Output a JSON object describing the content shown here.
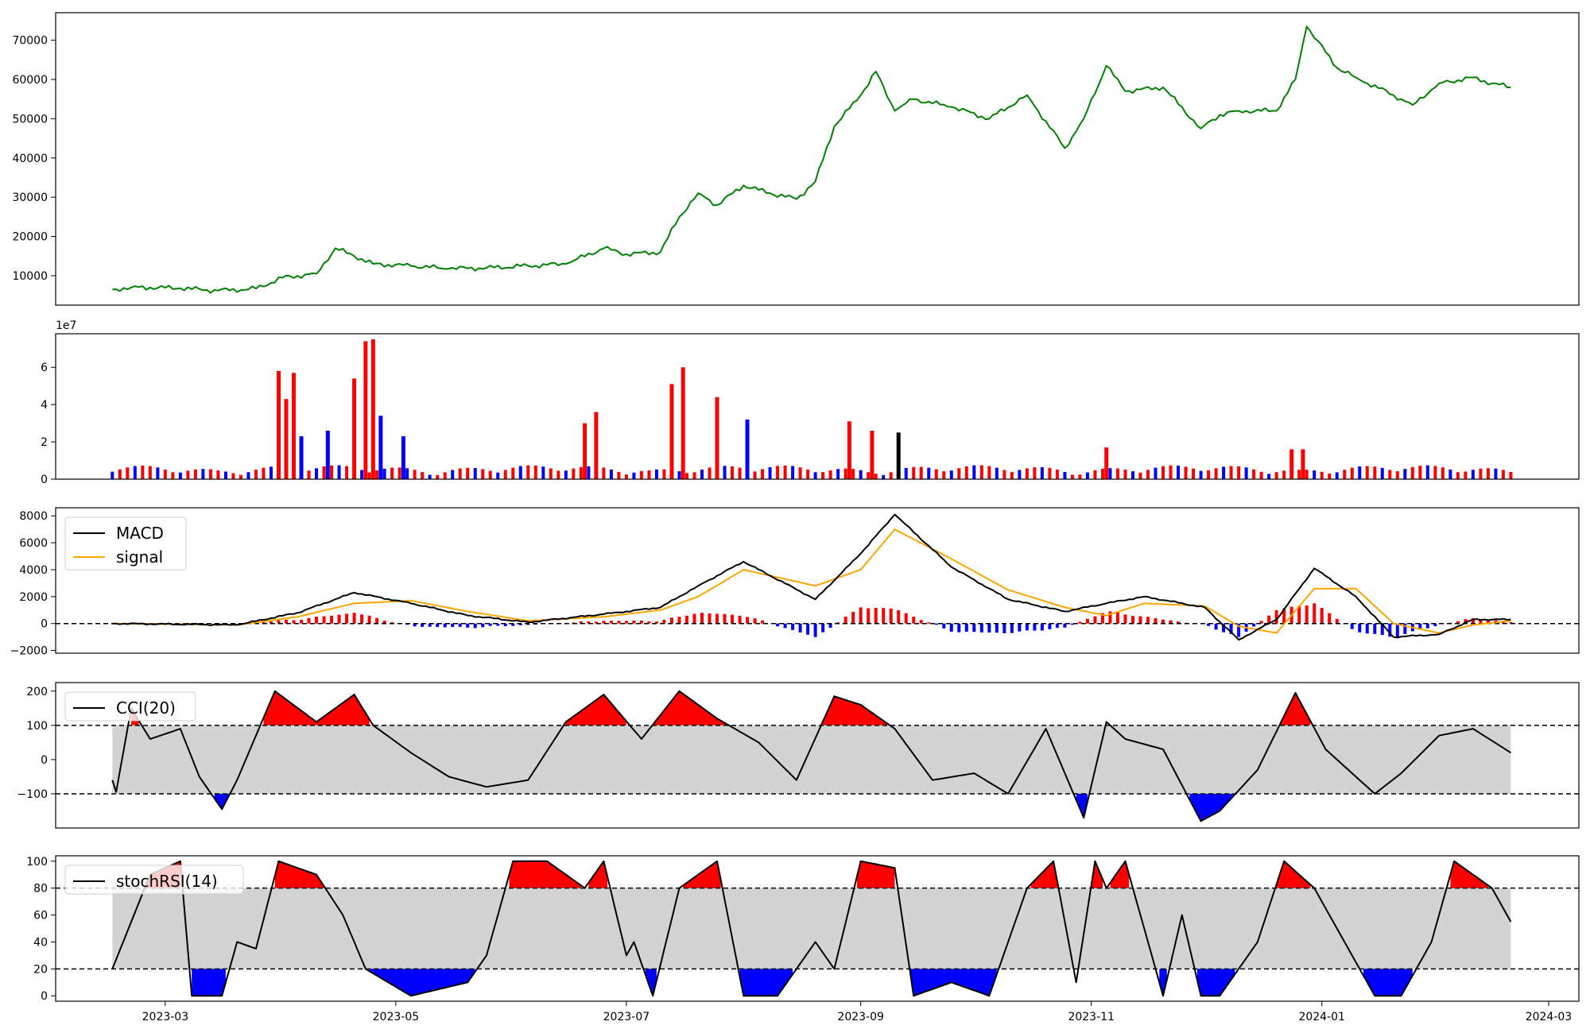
{
  "chart_data": [
    {
      "type": "line",
      "panel": "price",
      "color": "#008000",
      "x_dates": [
        "2023-02-15",
        "2023-02-20",
        "2023-02-25",
        "2023-03-05",
        "2023-03-15",
        "2023-03-25",
        "2023-04-01",
        "2023-04-10",
        "2023-04-15",
        "2023-04-20",
        "2023-04-25",
        "2023-05-05",
        "2023-05-15",
        "2023-05-25",
        "2023-06-05",
        "2023-06-15",
        "2023-06-25",
        "2023-07-01",
        "2023-07-10",
        "2023-07-15",
        "2023-07-20",
        "2023-07-25",
        "2023-08-01",
        "2023-08-08",
        "2023-08-15",
        "2023-08-20",
        "2023-08-25",
        "2023-09-01",
        "2023-09-05",
        "2023-09-10",
        "2023-09-15",
        "2023-09-25",
        "2023-10-05",
        "2023-10-15",
        "2023-10-25",
        "2023-10-30",
        "2023-11-05",
        "2023-11-10",
        "2023-11-20",
        "2023-11-30",
        "2023-12-05",
        "2023-12-10",
        "2023-12-20",
        "2023-12-25",
        "2023-12-28",
        "2024-01-05",
        "2024-01-10",
        "2024-01-20",
        "2024-01-25",
        "2024-02-01",
        "2024-02-10",
        "2024-02-15",
        "2024-02-20"
      ],
      "values": [
        6500,
        7000,
        7000,
        6800,
        6200,
        6700,
        9500,
        10500,
        17000,
        15000,
        13000,
        12500,
        11800,
        12000,
        12500,
        13000,
        17000,
        15500,
        16000,
        25000,
        31000,
        28000,
        33000,
        31000,
        29500,
        34000,
        48000,
        56000,
        62000,
        52000,
        55000,
        53000,
        50000,
        56000,
        42500,
        50000,
        63500,
        57000,
        58000,
        47500,
        51000,
        52000,
        52000,
        60000,
        73500,
        63000,
        60500,
        56000,
        53500,
        59000,
        60500,
        59000,
        58000
      ],
      "ylim": [
        2500,
        77000
      ],
      "yticks": [
        10000,
        20000,
        30000,
        40000,
        50000,
        60000,
        70000
      ],
      "ytick_labels": [
        "10000",
        "20000",
        "30000",
        "40000",
        "50000",
        "60000",
        "70000"
      ]
    },
    {
      "type": "bar",
      "panel": "volume",
      "scale_label": "1e7",
      "ylim": [
        0,
        7.8
      ],
      "yticks": [
        0,
        2,
        4,
        6
      ],
      "ytick_labels": [
        "0",
        "2",
        "4",
        "6"
      ],
      "colors": {
        "up": "#ff0000",
        "down": "#0000ff",
        "flat": "#000000"
      },
      "bars": [
        {
          "x": "2023-03-31",
          "v": 5.8,
          "c": "up"
        },
        {
          "x": "2023-04-02",
          "v": 4.3,
          "c": "up"
        },
        {
          "x": "2023-04-04",
          "v": 5.7,
          "c": "up"
        },
        {
          "x": "2023-04-06",
          "v": 2.3,
          "c": "down"
        },
        {
          "x": "2023-04-13",
          "v": 2.6,
          "c": "down"
        },
        {
          "x": "2023-04-20",
          "v": 5.4,
          "c": "up"
        },
        {
          "x": "2023-04-23",
          "v": 7.4,
          "c": "up"
        },
        {
          "x": "2023-04-25",
          "v": 7.5,
          "c": "up"
        },
        {
          "x": "2023-04-27",
          "v": 3.4,
          "c": "down"
        },
        {
          "x": "2023-05-03",
          "v": 2.3,
          "c": "down"
        },
        {
          "x": "2023-06-20",
          "v": 3.0,
          "c": "up"
        },
        {
          "x": "2023-06-23",
          "v": 3.6,
          "c": "up"
        },
        {
          "x": "2023-07-13",
          "v": 5.1,
          "c": "up"
        },
        {
          "x": "2023-07-16",
          "v": 6.0,
          "c": "up"
        },
        {
          "x": "2023-07-25",
          "v": 4.4,
          "c": "up"
        },
        {
          "x": "2023-08-02",
          "v": 3.2,
          "c": "down"
        },
        {
          "x": "2023-08-29",
          "v": 3.1,
          "c": "up"
        },
        {
          "x": "2023-09-04",
          "v": 2.6,
          "c": "up"
        },
        {
          "x": "2023-09-11",
          "v": 2.5,
          "c": "flat"
        },
        {
          "x": "2023-11-05",
          "v": 1.7,
          "c": "up"
        },
        {
          "x": "2023-12-24",
          "v": 1.6,
          "c": "up"
        },
        {
          "x": "2023-12-27",
          "v": 1.6,
          "c": "up"
        }
      ]
    },
    {
      "type": "line",
      "panel": "macd",
      "series": [
        {
          "name": "MACD",
          "color": "#000000",
          "x_dates": [
            "2023-02-15",
            "2023-03-20",
            "2023-04-05",
            "2023-04-20",
            "2023-05-05",
            "2023-05-20",
            "2023-06-05",
            "2023-06-25",
            "2023-07-10",
            "2023-07-20",
            "2023-08-01",
            "2023-08-20",
            "2023-09-01",
            "2023-09-10",
            "2023-09-25",
            "2023-10-10",
            "2023-10-25",
            "2023-11-05",
            "2023-11-15",
            "2023-12-01",
            "2023-12-10",
            "2023-12-20",
            "2023-12-30",
            "2024-01-10",
            "2024-01-20",
            "2024-02-01",
            "2024-02-10",
            "2024-02-20"
          ],
          "values": [
            0,
            -100,
            800,
            2300,
            1500,
            600,
            100,
            700,
            1200,
            2800,
            4600,
            1800,
            5200,
            8100,
            4200,
            1800,
            900,
            1500,
            2000,
            1200,
            -1200,
            300,
            4100,
            2000,
            -1000,
            -800,
            300,
            300
          ]
        },
        {
          "name": "signal",
          "color": "#ffa500",
          "x_dates": [
            "2023-02-15",
            "2023-03-20",
            "2023-04-05",
            "2023-04-20",
            "2023-05-05",
            "2023-05-20",
            "2023-06-05",
            "2023-06-25",
            "2023-07-10",
            "2023-07-20",
            "2023-08-01",
            "2023-08-20",
            "2023-09-01",
            "2023-09-10",
            "2023-09-25",
            "2023-10-10",
            "2023-10-25",
            "2023-11-05",
            "2023-11-15",
            "2023-12-01",
            "2023-12-10",
            "2023-12-20",
            "2023-12-30",
            "2024-01-10",
            "2024-01-20",
            "2024-02-01",
            "2024-02-10",
            "2024-02-20"
          ],
          "values": [
            0,
            -100,
            500,
            1500,
            1700,
            900,
            200,
            500,
            1000,
            2000,
            4000,
            2800,
            4000,
            7000,
            4800,
            2500,
            1200,
            600,
            1500,
            1300,
            -200,
            -700,
            2600,
            2600,
            0,
            -700,
            -100,
            200
          ]
        }
      ],
      "hist_color_pos": "#ff0000",
      "hist_color_neg": "#0000ff",
      "hline": 0,
      "ylim": [
        -2200,
        8600
      ],
      "yticks": [
        -2000,
        0,
        2000,
        4000,
        6000,
        8000
      ],
      "ytick_labels": [
        "−2000",
        "0",
        "2000",
        "4000",
        "6000",
        "8000"
      ]
    },
    {
      "type": "line",
      "panel": "cci",
      "series": [
        {
          "name": "CCI(20)",
          "color": "#000000",
          "x_dates": [
            "2023-02-15",
            "2023-02-16",
            "2023-02-20",
            "2023-02-25",
            "2023-03-05",
            "2023-03-10",
            "2023-03-16",
            "2023-03-20",
            "2023-03-30",
            "2023-04-10",
            "2023-04-20",
            "2023-04-25",
            "2023-05-05",
            "2023-05-15",
            "2023-05-25",
            "2023-06-05",
            "2023-06-15",
            "2023-06-25",
            "2023-07-05",
            "2023-07-15",
            "2023-07-25",
            "2023-08-05",
            "2023-08-15",
            "2023-08-25",
            "2023-09-01",
            "2023-09-10",
            "2023-09-20",
            "2023-10-01",
            "2023-10-10",
            "2023-10-20",
            "2023-10-30",
            "2023-11-05",
            "2023-11-10",
            "2023-11-20",
            "2023-11-30",
            "2023-12-05",
            "2023-12-15",
            "2023-12-25",
            "2024-01-02",
            "2024-01-15",
            "2024-01-22",
            "2024-02-01",
            "2024-02-10",
            "2024-02-20"
          ],
          "values": [
            -60,
            -95,
            150,
            60,
            90,
            -50,
            -145,
            -60,
            200,
            110,
            190,
            100,
            20,
            -50,
            -80,
            -60,
            110,
            190,
            60,
            200,
            120,
            50,
            -60,
            185,
            160,
            90,
            -60,
            -40,
            -100,
            90,
            -170,
            110,
            60,
            30,
            -180,
            -150,
            -30,
            195,
            30,
            -100,
            -40,
            70,
            90,
            20
          ]
        }
      ],
      "upper": 100,
      "lower": -100,
      "ylim": [
        -200,
        225
      ],
      "yticks": [
        -100,
        0,
        100,
        200
      ],
      "ytick_labels": [
        "−100",
        "0",
        "100",
        "200"
      ]
    },
    {
      "type": "line",
      "panel": "stochrsi",
      "series": [
        {
          "name": "stochRSI(14)",
          "color": "#000000",
          "x_dates": [
            "2023-02-15",
            "2023-02-25",
            "2023-03-05",
            "2023-03-08",
            "2023-03-16",
            "2023-03-20",
            "2023-03-25",
            "2023-03-31",
            "2023-04-10",
            "2023-04-17",
            "2023-04-23",
            "2023-05-05",
            "2023-05-20",
            "2023-05-25",
            "2023-06-01",
            "2023-06-10",
            "2023-06-20",
            "2023-06-25",
            "2023-07-01",
            "2023-07-03",
            "2023-07-08",
            "2023-07-15",
            "2023-07-25",
            "2023-08-01",
            "2023-08-10",
            "2023-08-20",
            "2023-08-25",
            "2023-09-01",
            "2023-09-10",
            "2023-09-15",
            "2023-09-25",
            "2023-10-05",
            "2023-10-15",
            "2023-10-22",
            "2023-10-28",
            "2023-11-02",
            "2023-11-05",
            "2023-11-10",
            "2023-11-20",
            "2023-11-25",
            "2023-11-30",
            "2023-12-05",
            "2023-12-15",
            "2023-12-22",
            "2023-12-30",
            "2024-01-05",
            "2024-01-15",
            "2024-01-22",
            "2024-01-30",
            "2024-02-05",
            "2024-02-15",
            "2024-02-20"
          ],
          "values": [
            20,
            90,
            100,
            0,
            0,
            40,
            35,
            100,
            90,
            60,
            20,
            0,
            10,
            30,
            100,
            100,
            80,
            100,
            30,
            40,
            0,
            80,
            100,
            0,
            0,
            40,
            20,
            100,
            95,
            0,
            10,
            0,
            80,
            100,
            10,
            100,
            80,
            100,
            0,
            60,
            0,
            0,
            40,
            100,
            80,
            50,
            0,
            0,
            40,
            100,
            80,
            55
          ]
        }
      ],
      "upper": 80,
      "lower": 20,
      "ylim": [
        -4,
        104
      ],
      "yticks": [
        0,
        20,
        40,
        60,
        80,
        100
      ],
      "ytick_labels": [
        "0",
        "20",
        "40",
        "60",
        "80",
        "100"
      ]
    }
  ],
  "x_axis": {
    "xlim": [
      "2023-01-31",
      "2024-03-09"
    ],
    "ticks": [
      "2023-03-01",
      "2023-05-01",
      "2023-07-01",
      "2023-09-01",
      "2023-11-01",
      "2024-01-01",
      "2024-03-01"
    ],
    "tick_labels": [
      "2023-03",
      "2023-05",
      "2023-07",
      "2023-09",
      "2023-11",
      "2024-01",
      "2024-03"
    ]
  },
  "fill_colors": {
    "band": "#d3d3d3",
    "above": "#ff0000",
    "below": "#0000ff"
  }
}
